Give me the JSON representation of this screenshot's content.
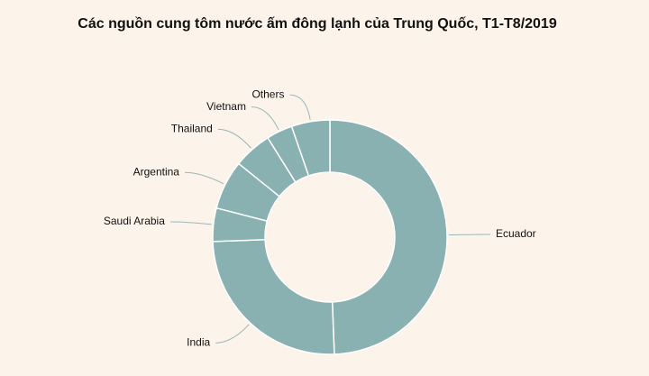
{
  "chart_data": {
    "type": "donut",
    "title": "Các nguồn cung tôm nước ấm đông lạnh của Trung Quốc, T1-T8/2019",
    "categories": [
      "Ecuador",
      "India",
      "Saudi Arabia",
      "Argentina",
      "Thailand",
      "Vietnam",
      "Others"
    ],
    "values": [
      49.4,
      25,
      4.6,
      6.8,
      5.3,
      3.6,
      5.3
    ],
    "color": "#8ab1b1"
  }
}
